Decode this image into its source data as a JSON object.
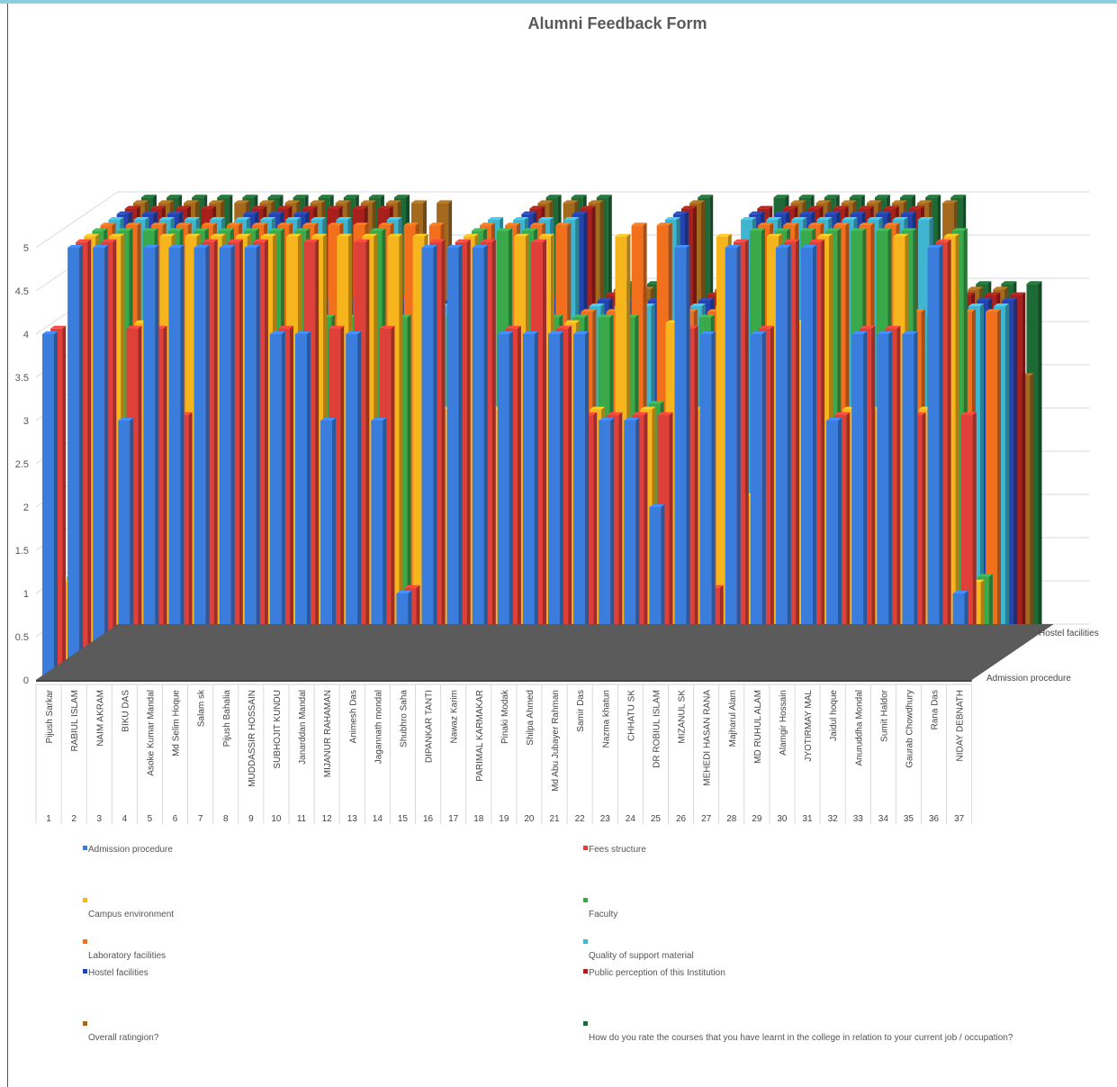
{
  "chart_data": {
    "type": "bar",
    "title": "Alumni Feedback Form",
    "ylim": [
      0,
      5
    ],
    "yticks": [
      "0",
      "0.5",
      "1",
      "1.5",
      "2",
      "2.5",
      "3",
      "3.5",
      "4",
      "4.5",
      "5"
    ],
    "depth_labels": [
      "Admission procedure",
      "Hostel facilities"
    ],
    "categories": [
      {
        "index": "1",
        "name": "Pijush Sarkar"
      },
      {
        "index": "2",
        "name": "RABIUL ISLAM"
      },
      {
        "index": "3",
        "name": "NAIM AKRAM"
      },
      {
        "index": "4",
        "name": "BIKU DAS"
      },
      {
        "index": "5",
        "name": "Asoke Kumar Mandal"
      },
      {
        "index": "6",
        "name": "Md Selim Hoque"
      },
      {
        "index": "7",
        "name": "Salam sk"
      },
      {
        "index": "8",
        "name": "Pijush Bahalia"
      },
      {
        "index": "9",
        "name": "MUDDASSIR HOSSAIN"
      },
      {
        "index": "10",
        "name": "SUBHOJIT KUNDU"
      },
      {
        "index": "11",
        "name": "Janarddan Mandal"
      },
      {
        "index": "12",
        "name": "MIJANUR RAHAMAN"
      },
      {
        "index": "13",
        "name": "Animesh Das"
      },
      {
        "index": "14",
        "name": "Jagannath mondal"
      },
      {
        "index": "15",
        "name": "Shubhro Saha"
      },
      {
        "index": "16",
        "name": "DIPANKAR TANTI"
      },
      {
        "index": "17",
        "name": "Nawaz Karim"
      },
      {
        "index": "18",
        "name": "PARIMAL KARMAKAR"
      },
      {
        "index": "19",
        "name": "Pinaki Modak"
      },
      {
        "index": "20",
        "name": "Shilpa Ahmed"
      },
      {
        "index": "21",
        "name": "Md Abu Jubayer Rahman"
      },
      {
        "index": "22",
        "name": "Samir Das"
      },
      {
        "index": "23",
        "name": "Nazma khatun"
      },
      {
        "index": "24",
        "name": "CHHATU SK"
      },
      {
        "index": "25",
        "name": "DR ROBIUL ISLAM"
      },
      {
        "index": "26",
        "name": "MIZANUL SK"
      },
      {
        "index": "27",
        "name": "MEHEDI HASAN RANA"
      },
      {
        "index": "28",
        "name": "Majharul Alam"
      },
      {
        "index": "29",
        "name": "MD RUHUL ALAM"
      },
      {
        "index": "30",
        "name": "Alamgir Hossain"
      },
      {
        "index": "31",
        "name": "JYOTIRMAY MAL"
      },
      {
        "index": "32",
        "name": "Jaidul hoque"
      },
      {
        "index": "33",
        "name": "Anuruddha Mondal"
      },
      {
        "index": "34",
        "name": "Sumit Haldor"
      },
      {
        "index": "35",
        "name": "Gaurab Chowdhury"
      },
      {
        "index": "36",
        "name": "Rana Das"
      },
      {
        "index": "37",
        "name": "NIDAY DEBNATH"
      }
    ],
    "series": [
      {
        "name": "Admission procedure",
        "color": "#3b7ddd",
        "values": [
          4,
          5,
          5,
          3,
          5,
          5,
          5,
          5,
          5,
          4,
          4,
          3,
          4,
          3,
          1,
          5,
          5,
          5,
          4,
          4,
          4,
          4,
          3,
          3,
          2,
          5,
          4,
          5,
          4,
          5,
          5,
          3,
          4,
          4,
          4,
          5,
          1
        ]
      },
      {
        "name": "Fees structure",
        "color": "#e0403a",
        "values": [
          4,
          5,
          5,
          4,
          4,
          3,
          5,
          5,
          5,
          4,
          5,
          4,
          5,
          4,
          1,
          5,
          5,
          5,
          4,
          5,
          4,
          3,
          3,
          3,
          3,
          4,
          1,
          5,
          4,
          5,
          5,
          3,
          4,
          4,
          3,
          5,
          3
        ]
      },
      {
        "name": "Campus environment",
        "color": "#f6b41d",
        "values": [
          1,
          5,
          5,
          4,
          5,
          5,
          5,
          5,
          5,
          5,
          5,
          5,
          5,
          5,
          5,
          3,
          5,
          3,
          5,
          5,
          4,
          3,
          5,
          3,
          4,
          3,
          5,
          2,
          5,
          4,
          5,
          3,
          3,
          5,
          3,
          5,
          1
        ]
      },
      {
        "name": "Faculty",
        "color": "#39a94a",
        "values": [
          1,
          5,
          5,
          5,
          5,
          5,
          5,
          5,
          5,
          5,
          4,
          4,
          5,
          4,
          4,
          4,
          5,
          5,
          5,
          4,
          4,
          4,
          4,
          3,
          2,
          4,
          4,
          5,
          5,
          5,
          5,
          5,
          5,
          5,
          4,
          5,
          1
        ]
      },
      {
        "name": "Laboratory facilities",
        "color": "#f26f1c",
        "values": [
          1,
          5,
          5,
          5,
          5,
          5,
          5,
          5,
          5,
          5,
          5,
          5,
          5,
          5,
          5,
          4,
          5,
          5,
          5,
          5,
          4,
          4,
          5,
          5,
          4,
          4,
          4,
          5,
          5,
          5,
          5,
          5,
          5,
          4,
          4,
          4,
          4
        ]
      },
      {
        "name": "Quality of support material",
        "color": "#3fb5cf",
        "values": [
          1,
          5,
          5,
          5,
          5,
          5,
          5,
          5,
          5,
          5,
          5,
          4,
          5,
          4,
          4,
          4,
          5,
          5,
          5,
          5,
          4,
          4,
          4,
          5,
          4,
          4,
          5,
          5,
          5,
          5,
          5,
          5,
          5,
          5,
          4,
          4,
          4
        ]
      },
      {
        "name": "Hostel facilities",
        "color": "#2344b0",
        "values": [
          1,
          5,
          5,
          5,
          4,
          4,
          5,
          5,
          5,
          4,
          4,
          4,
          4,
          4,
          4,
          4,
          4,
          5,
          4,
          5,
          4,
          4,
          4,
          5,
          4,
          4,
          5,
          5,
          5,
          5,
          5,
          5,
          5,
          4,
          4,
          4,
          4
        ]
      },
      {
        "name": "Public perception of this Institution",
        "color": "#a8201c",
        "values": [
          1,
          5,
          5,
          5,
          5,
          4,
          5,
          5,
          5,
          5,
          5,
          5,
          4,
          4,
          4,
          4,
          4,
          5,
          4,
          5,
          4,
          4,
          4,
          5,
          4,
          4,
          5,
          5,
          5,
          5,
          5,
          5,
          5,
          4,
          4,
          4,
          4
        ]
      },
      {
        "name": "Overall ratingion?",
        "color": "#a36a1e",
        "values": [
          1,
          5,
          5,
          5,
          5,
          5,
          5,
          5,
          5,
          5,
          5,
          5,
          5,
          5,
          4,
          4,
          4,
          5,
          5,
          5,
          4,
          4,
          4,
          5,
          4,
          4,
          4,
          5,
          5,
          5,
          5,
          5,
          5,
          5,
          4,
          4,
          3
        ]
      },
      {
        "name": "How do you rate the courses that you have learnt in the college in relation to your current job / occupation?",
        "color": "#1e6a36",
        "values": [
          1,
          5,
          5,
          5,
          5,
          5,
          5,
          5,
          5,
          5,
          5,
          5,
          4,
          4,
          4,
          4,
          4,
          5,
          5,
          5,
          4,
          4,
          4,
          5,
          4,
          4,
          5,
          5,
          5,
          5,
          5,
          5,
          5,
          5,
          4,
          4,
          4
        ]
      }
    ],
    "legend_position": "bottom",
    "grid": true
  }
}
